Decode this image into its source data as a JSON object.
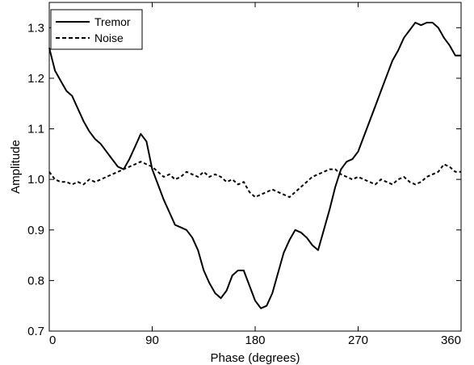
{
  "chart_data": {
    "type": "line",
    "title": "",
    "xlabel": "Phase (degrees)",
    "ylabel": "Amplitude",
    "xlim": [
      0,
      360
    ],
    "ylim": [
      0.7,
      1.35
    ],
    "xticks": [
      0,
      90,
      180,
      270,
      360
    ],
    "yticks": [
      0.7,
      0.8,
      0.9,
      1.0,
      1.1,
      1.2,
      1.3
    ],
    "ytick_labels": [
      "0.7",
      "0.8",
      "0.9",
      "1.0",
      "1.1",
      "1.2",
      "1.3"
    ],
    "grid": false,
    "legend_position": "top-left",
    "series": [
      {
        "name": "Tremor",
        "style": "solid",
        "color": "#000000",
        "x": [
          0,
          5,
          10,
          15,
          20,
          25,
          30,
          35,
          40,
          45,
          50,
          55,
          60,
          65,
          70,
          75,
          80,
          85,
          90,
          95,
          100,
          105,
          110,
          115,
          120,
          125,
          130,
          135,
          140,
          145,
          150,
          155,
          160,
          165,
          170,
          175,
          180,
          185,
          190,
          195,
          200,
          205,
          210,
          215,
          220,
          225,
          230,
          235,
          240,
          245,
          250,
          255,
          260,
          265,
          270,
          275,
          280,
          285,
          290,
          295,
          300,
          305,
          310,
          315,
          320,
          325,
          330,
          335,
          340,
          345,
          350,
          355,
          360
        ],
        "values": [
          1.26,
          1.215,
          1.195,
          1.175,
          1.165,
          1.14,
          1.115,
          1.095,
          1.08,
          1.07,
          1.055,
          1.04,
          1.025,
          1.02,
          1.04,
          1.065,
          1.09,
          1.075,
          1.02,
          0.99,
          0.96,
          0.935,
          0.91,
          0.905,
          0.9,
          0.885,
          0.86,
          0.82,
          0.795,
          0.775,
          0.765,
          0.78,
          0.81,
          0.82,
          0.82,
          0.79,
          0.76,
          0.745,
          0.75,
          0.775,
          0.815,
          0.855,
          0.88,
          0.9,
          0.895,
          0.885,
          0.87,
          0.86,
          0.9,
          0.94,
          0.985,
          1.02,
          1.035,
          1.04,
          1.055,
          1.085,
          1.115,
          1.145,
          1.175,
          1.205,
          1.235,
          1.255,
          1.28,
          1.295,
          1.31,
          1.305,
          1.31,
          1.31,
          1.3,
          1.28,
          1.265,
          1.245,
          1.245
        ]
      },
      {
        "name": "Noise",
        "style": "dashed",
        "color": "#000000",
        "x": [
          0,
          5,
          10,
          15,
          20,
          25,
          30,
          35,
          40,
          45,
          50,
          55,
          60,
          65,
          70,
          75,
          80,
          85,
          90,
          95,
          100,
          105,
          110,
          115,
          120,
          125,
          130,
          135,
          140,
          145,
          150,
          155,
          160,
          165,
          170,
          175,
          180,
          185,
          190,
          195,
          200,
          205,
          210,
          215,
          220,
          225,
          230,
          235,
          240,
          245,
          250,
          255,
          260,
          265,
          270,
          275,
          280,
          285,
          290,
          295,
          300,
          305,
          310,
          315,
          320,
          325,
          330,
          335,
          340,
          345,
          350,
          355,
          360
        ],
        "values": [
          1.015,
          1.0,
          0.995,
          0.995,
          0.99,
          0.995,
          0.99,
          1.0,
          0.995,
          1.0,
          1.005,
          1.01,
          1.015,
          1.02,
          1.025,
          1.03,
          1.035,
          1.03,
          1.025,
          1.015,
          1.005,
          1.01,
          1.0,
          1.005,
          1.015,
          1.01,
          1.005,
          1.015,
          1.005,
          1.01,
          1.005,
          0.995,
          1.0,
          0.99,
          0.995,
          0.975,
          0.965,
          0.97,
          0.975,
          0.98,
          0.975,
          0.97,
          0.965,
          0.975,
          0.985,
          0.995,
          1.005,
          1.01,
          1.015,
          1.02,
          1.02,
          1.01,
          1.005,
          1.0,
          1.005,
          1.0,
          0.995,
          0.99,
          1.0,
          0.995,
          0.99,
          1.0,
          1.005,
          0.995,
          0.99,
          0.995,
          1.005,
          1.01,
          1.015,
          1.03,
          1.025,
          1.015,
          1.015
        ]
      }
    ]
  }
}
